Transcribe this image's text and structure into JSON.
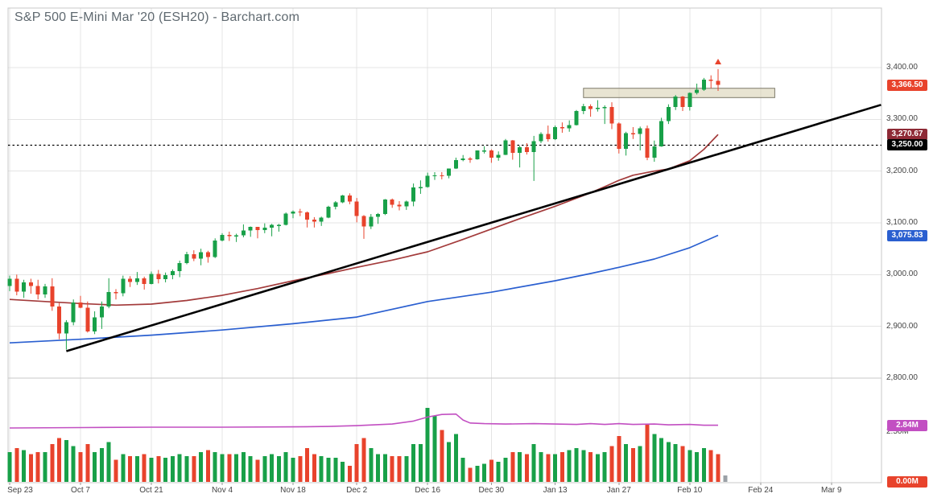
{
  "title": "S&P 500 E-Mini Mar '20 (ESH20) - Barchart.com",
  "colors": {
    "up": "#18a048",
    "down": "#e8432c",
    "ma_fast": "#a33b3b",
    "ma_slow": "#2a5fd0",
    "trendline": "#000000",
    "volume_ma": "#c24fc2",
    "grid": "#e4e4e4",
    "border": "#c8c8c8",
    "box_fill": "rgba(214,205,173,0.55)",
    "box_border": "#7d7a6a",
    "partial_bar": "#9aa0a6",
    "axis_text": "#444444",
    "title_text": "#5f6970"
  },
  "y_axis": {
    "ticks": [
      {
        "label": "3,400.00",
        "value": 3400
      },
      {
        "label": "3,300.00",
        "value": 3300
      },
      {
        "label": "3,200.00",
        "value": 3200
      },
      {
        "label": "3,100.00",
        "value": 3100
      },
      {
        "label": "3,000.00",
        "value": 3000
      },
      {
        "label": "2,900.00",
        "value": 2900
      },
      {
        "label": "2,800.00",
        "value": 2800
      }
    ]
  },
  "volume_axis": {
    "ticks": [
      {
        "label": "2.50M",
        "value": 2.5
      }
    ]
  },
  "x_axis": {
    "ticks": [
      {
        "label": "Sep 23",
        "index": 0
      },
      {
        "label": "Oct 7",
        "index": 10
      },
      {
        "label": "Oct 21",
        "index": 20
      },
      {
        "label": "Nov 4",
        "index": 30
      },
      {
        "label": "Nov 18",
        "index": 40
      },
      {
        "label": "Dec 2",
        "index": 49
      },
      {
        "label": "Dec 16",
        "index": 59
      },
      {
        "label": "Dec 30",
        "index": 68
      },
      {
        "label": "Jan 13",
        "index": 77
      },
      {
        "label": "Jan 27",
        "index": 86
      },
      {
        "label": "Feb 10",
        "index": 96
      },
      {
        "label": "Feb 24",
        "index": 106
      },
      {
        "label": "Mar 9",
        "index": 116
      }
    ]
  },
  "badges": [
    {
      "name": "last-price-badge",
      "label": "3,366.50",
      "color": "#e8432c",
      "panel": "price",
      "value": 3366.5
    },
    {
      "name": "ma-fast-badge",
      "label": "3,270.67",
      "color": "#8e2a36",
      "panel": "price",
      "value": 3270.67
    },
    {
      "name": "dotted-line-badge",
      "label": "3,250.00",
      "color": "#000000",
      "panel": "price",
      "value": 3250
    },
    {
      "name": "ma-slow-badge",
      "label": "3,075.83",
      "color": "#2a5fd0",
      "panel": "price",
      "value": 3075.83
    },
    {
      "name": "volume-ma-badge",
      "label": "2.84M",
      "color": "#c24fc2",
      "panel": "volume",
      "value": 2.84
    },
    {
      "name": "current-volume-badge",
      "label": "0.00M",
      "color": "#e8432c",
      "panel": "volume",
      "value": 0.0
    }
  ],
  "chart_data": {
    "type": "candlestick",
    "symbol": "ESH20",
    "last_price": 3366.5,
    "candles": [
      [
        "Sep 23",
        2978,
        2998,
        2968,
        2992,
        1.5
      ],
      [
        "Sep 24",
        2992,
        3000,
        2960,
        2967,
        1.7
      ],
      [
        "Sep 25",
        2967,
        2990,
        2955,
        2985,
        1.6
      ],
      [
        "Sep 26",
        2985,
        2992,
        2963,
        2978,
        1.4
      ],
      [
        "Sep 27",
        2978,
        2990,
        2952,
        2962,
        1.5
      ],
      [
        "Sep 30",
        2962,
        2982,
        2955,
        2977,
        1.5
      ],
      [
        "Oct 1",
        2977,
        2993,
        2930,
        2938,
        1.9
      ],
      [
        "Oct 2",
        2938,
        2945,
        2875,
        2886,
        2.2
      ],
      [
        "Oct 3",
        2886,
        2912,
        2855,
        2908,
        2.1
      ],
      [
        "Oct 4",
        2908,
        2952,
        2902,
        2946,
        1.8
      ],
      [
        "Oct 7",
        2946,
        2959,
        2935,
        2936,
        1.5
      ],
      [
        "Oct 8",
        2936,
        2948,
        2888,
        2890,
        1.9
      ],
      [
        "Oct 9",
        2890,
        2929,
        2885,
        2917,
        1.5
      ],
      [
        "Oct 10",
        2917,
        2948,
        2895,
        2938,
        1.7
      ],
      [
        "Oct 11",
        2938,
        2993,
        2935,
        2966,
        2.0
      ],
      [
        "Oct 14",
        2966,
        2972,
        2952,
        2964,
        1.1
      ],
      [
        "Oct 15",
        2964,
        2998,
        2958,
        2992,
        1.4
      ],
      [
        "Oct 16",
        2992,
        2997,
        2976,
        2986,
        1.3
      ],
      [
        "Oct 17",
        2986,
        3005,
        2980,
        2993,
        1.3
      ],
      [
        "Oct 18",
        2993,
        2996,
        2971,
        2982,
        1.4
      ],
      [
        "Oct 21",
        2982,
        3006,
        2981,
        3001,
        1.2
      ],
      [
        "Oct 22",
        3001,
        3009,
        2983,
        2991,
        1.3
      ],
      [
        "Oct 23",
        2991,
        3004,
        2985,
        2999,
        1.2
      ],
      [
        "Oct 24",
        2999,
        3010,
        2991,
        3007,
        1.3
      ],
      [
        "Oct 25",
        3007,
        3027,
        2995,
        3022,
        1.4
      ],
      [
        "Oct 28",
        3022,
        3044,
        3020,
        3039,
        1.3
      ],
      [
        "Oct 29",
        3039,
        3047,
        3026,
        3031,
        1.3
      ],
      [
        "Oct 30",
        3031,
        3050,
        3018,
        3043,
        1.5
      ],
      [
        "Oct 31",
        3043,
        3046,
        3023,
        3034,
        1.6
      ],
      [
        "Nov 1",
        3034,
        3070,
        3032,
        3066,
        1.5
      ],
      [
        "Nov 4",
        3066,
        3080,
        3064,
        3077,
        1.4
      ],
      [
        "Nov 5",
        3077,
        3083,
        3065,
        3074,
        1.4
      ],
      [
        "Nov 6",
        3074,
        3079,
        3063,
        3076,
        1.4
      ],
      [
        "Nov 7",
        3076,
        3097,
        3072,
        3085,
        1.5
      ],
      [
        "Nov 8",
        3085,
        3093,
        3073,
        3092,
        1.3
      ],
      [
        "Nov 11",
        3092,
        3092,
        3070,
        3086,
        1.1
      ],
      [
        "Nov 12",
        3086,
        3099,
        3080,
        3091,
        1.3
      ],
      [
        "Nov 13",
        3091,
        3098,
        3074,
        3096,
        1.4
      ],
      [
        "Nov 14",
        3096,
        3098,
        3083,
        3096,
        1.3
      ],
      [
        "Nov 15",
        3096,
        3120,
        3095,
        3118,
        1.5
      ],
      [
        "Nov 18",
        3118,
        3124,
        3109,
        3122,
        1.2
      ],
      [
        "Nov 19",
        3122,
        3127,
        3113,
        3120,
        1.3
      ],
      [
        "Nov 20",
        3120,
        3122,
        3091,
        3106,
        1.7
      ],
      [
        "Nov 21",
        3106,
        3111,
        3091,
        3102,
        1.4
      ],
      [
        "Nov 22",
        3102,
        3112,
        3094,
        3110,
        1.3
      ],
      [
        "Nov 25",
        3110,
        3133,
        3109,
        3131,
        1.2
      ],
      [
        "Nov 26",
        3131,
        3142,
        3126,
        3140,
        1.2
      ],
      [
        "Nov 27",
        3140,
        3154,
        3138,
        3153,
        1.0
      ],
      [
        "Nov 29",
        3153,
        3157,
        3136,
        3141,
        0.8
      ],
      [
        "Dec 2",
        3141,
        3148,
        3101,
        3113,
        1.9
      ],
      [
        "Dec 3",
        3113,
        3115,
        3069,
        3093,
        2.2
      ],
      [
        "Dec 4",
        3093,
        3117,
        3088,
        3112,
        1.7
      ],
      [
        "Dec 5",
        3112,
        3119,
        3098,
        3117,
        1.4
      ],
      [
        "Dec 6",
        3117,
        3146,
        3115,
        3145,
        1.4
      ],
      [
        "Dec 9",
        3145,
        3147,
        3129,
        3135,
        1.3
      ],
      [
        "Dec 10",
        3135,
        3142,
        3124,
        3132,
        1.3
      ],
      [
        "Dec 11",
        3132,
        3143,
        3125,
        3141,
        1.3
      ],
      [
        "Dec 12",
        3141,
        3176,
        3132,
        3168,
        1.9
      ],
      [
        "Dec 13",
        3168,
        3182,
        3156,
        3169,
        1.9
      ],
      [
        "Dec 16",
        3169,
        3197,
        3168,
        3191,
        3.7
      ],
      [
        "Dec 17",
        3191,
        3198,
        3183,
        3192,
        3.3
      ],
      [
        "Dec 18",
        3192,
        3198,
        3184,
        3191,
        2.6
      ],
      [
        "Dec 19",
        3191,
        3205,
        3186,
        3205,
        2.0
      ],
      [
        "Dec 20",
        3205,
        3226,
        3204,
        3221,
        2.4
      ],
      [
        "Dec 23",
        3221,
        3231,
        3219,
        3224,
        1.2
      ],
      [
        "Dec 24",
        3224,
        3227,
        3216,
        3223,
        0.7
      ],
      [
        "Dec 26",
        3223,
        3240,
        3222,
        3240,
        0.8
      ],
      [
        "Dec 27",
        3240,
        3248,
        3234,
        3240,
        0.9
      ],
      [
        "Dec 30",
        3240,
        3242,
        3216,
        3226,
        1.1
      ],
      [
        "Dec 31",
        3226,
        3238,
        3220,
        3231,
        1.0
      ],
      [
        "Jan 2",
        3231,
        3262,
        3231,
        3259,
        1.2
      ],
      [
        "Jan 3",
        3259,
        3260,
        3222,
        3235,
        1.5
      ],
      [
        "Jan 6",
        3235,
        3249,
        3207,
        3246,
        1.5
      ],
      [
        "Jan 7",
        3246,
        3254,
        3232,
        3237,
        1.4
      ],
      [
        "Jan 8",
        3237,
        3268,
        3181,
        3258,
        1.9
      ],
      [
        "Jan 9",
        3258,
        3275,
        3254,
        3272,
        1.5
      ],
      [
        "Jan 10",
        3272,
        3288,
        3257,
        3262,
        1.4
      ],
      [
        "Jan 13",
        3262,
        3288,
        3260,
        3285,
        1.4
      ],
      [
        "Jan 14",
        3285,
        3294,
        3274,
        3283,
        1.5
      ],
      [
        "Jan 15",
        3283,
        3298,
        3276,
        3289,
        1.6
      ],
      [
        "Jan 16",
        3289,
        3318,
        3288,
        3316,
        1.7
      ],
      [
        "Jan 17",
        3316,
        3330,
        3310,
        3325,
        1.6
      ],
      [
        "Jan 21",
        3325,
        3329,
        3305,
        3320,
        1.5
      ],
      [
        "Jan 22",
        3320,
        3337,
        3315,
        3322,
        1.4
      ],
      [
        "Jan 23",
        3322,
        3327,
        3291,
        3324,
        1.5
      ],
      [
        "Jan 24",
        3324,
        3333,
        3281,
        3292,
        1.8
      ],
      [
        "Jan 27",
        3292,
        3294,
        3234,
        3243,
        2.3
      ],
      [
        "Jan 28",
        3243,
        3276,
        3230,
        3273,
        1.9
      ],
      [
        "Jan 29",
        3273,
        3285,
        3262,
        3272,
        1.7
      ],
      [
        "Jan 30",
        3272,
        3286,
        3240,
        3283,
        1.8
      ],
      [
        "Jan 31",
        3283,
        3288,
        3221,
        3226,
        2.9
      ],
      [
        "Feb 3",
        3226,
        3259,
        3218,
        3248,
        2.4
      ],
      [
        "Feb 4",
        3248,
        3303,
        3247,
        3297,
        2.2
      ],
      [
        "Feb 5",
        3297,
        3329,
        3291,
        3324,
        2.0
      ],
      [
        "Feb 6",
        3324,
        3347,
        3318,
        3344,
        1.9
      ],
      [
        "Feb 7",
        3344,
        3345,
        3316,
        3324,
        1.8
      ],
      [
        "Feb 10",
        3324,
        3352,
        3317,
        3351,
        1.6
      ],
      [
        "Feb 11",
        3351,
        3369,
        3348,
        3357,
        1.5
      ],
      [
        "Feb 12",
        3357,
        3380,
        3355,
        3377,
        1.7
      ],
      [
        "Feb 13",
        3377,
        3385,
        3360,
        3374,
        1.6
      ],
      [
        "Feb 14",
        3374,
        3397,
        3355,
        3366.5,
        1.4
      ]
    ],
    "overlays": {
      "ma_fast": {
        "label": "3,270.67",
        "points": [
          [
            0,
            2952
          ],
          [
            5,
            2948
          ],
          [
            10,
            2944
          ],
          [
            15,
            2941
          ],
          [
            20,
            2943
          ],
          [
            25,
            2950
          ],
          [
            30,
            2960
          ],
          [
            35,
            2973
          ],
          [
            40,
            2988
          ],
          [
            45,
            3002
          ],
          [
            49,
            3014
          ],
          [
            54,
            3028
          ],
          [
            59,
            3044
          ],
          [
            64,
            3068
          ],
          [
            68,
            3088
          ],
          [
            72,
            3108
          ],
          [
            77,
            3132
          ],
          [
            82,
            3158
          ],
          [
            84,
            3170
          ],
          [
            86,
            3182
          ],
          [
            88,
            3192
          ],
          [
            91,
            3200
          ],
          [
            93,
            3204
          ],
          [
            96,
            3220
          ],
          [
            98,
            3242
          ],
          [
            100,
            3270.67
          ]
        ]
      },
      "ma_slow": {
        "label": "3,075.83",
        "points": [
          [
            0,
            2868
          ],
          [
            10,
            2875
          ],
          [
            20,
            2883
          ],
          [
            30,
            2893
          ],
          [
            40,
            2905
          ],
          [
            49,
            2918
          ],
          [
            59,
            2948
          ],
          [
            68,
            2966
          ],
          [
            77,
            2988
          ],
          [
            82,
            3002
          ],
          [
            86,
            3014
          ],
          [
            91,
            3030
          ],
          [
            96,
            3052
          ],
          [
            100,
            3075.83
          ]
        ]
      },
      "volume_ma": {
        "label": "2.84M",
        "points": [
          [
            0,
            2.7
          ],
          [
            10,
            2.72
          ],
          [
            20,
            2.74
          ],
          [
            30,
            2.74
          ],
          [
            40,
            2.76
          ],
          [
            45,
            2.78
          ],
          [
            49,
            2.82
          ],
          [
            54,
            2.9
          ],
          [
            57,
            3.05
          ],
          [
            59,
            3.25
          ],
          [
            61,
            3.38
          ],
          [
            63,
            3.4
          ],
          [
            64,
            3.1
          ],
          [
            65,
            2.95
          ],
          [
            67,
            2.92
          ],
          [
            70,
            2.9
          ],
          [
            74,
            2.92
          ],
          [
            77,
            2.9
          ],
          [
            80,
            2.88
          ],
          [
            82,
            2.92
          ],
          [
            84,
            2.88
          ],
          [
            86,
            2.92
          ],
          [
            88,
            2.88
          ],
          [
            91,
            2.9
          ],
          [
            93,
            2.86
          ],
          [
            96,
            2.88
          ],
          [
            98,
            2.84
          ],
          [
            100,
            2.84
          ]
        ]
      },
      "trendline": {
        "points": [
          [
            8,
            2852
          ],
          [
            123,
            3328
          ]
        ]
      },
      "resistance_box": {
        "from_index": 81,
        "to_index": 108,
        "price_low": 3342,
        "price_high": 3360
      },
      "horizontal_dotted_line": {
        "price": 3250,
        "label": "3,250.00"
      },
      "marker": {
        "index": 100,
        "symbol": "triangle-up",
        "color": "#e8432c"
      },
      "partial_volume_bar": {
        "index": 101,
        "value": 0.33
      }
    }
  }
}
